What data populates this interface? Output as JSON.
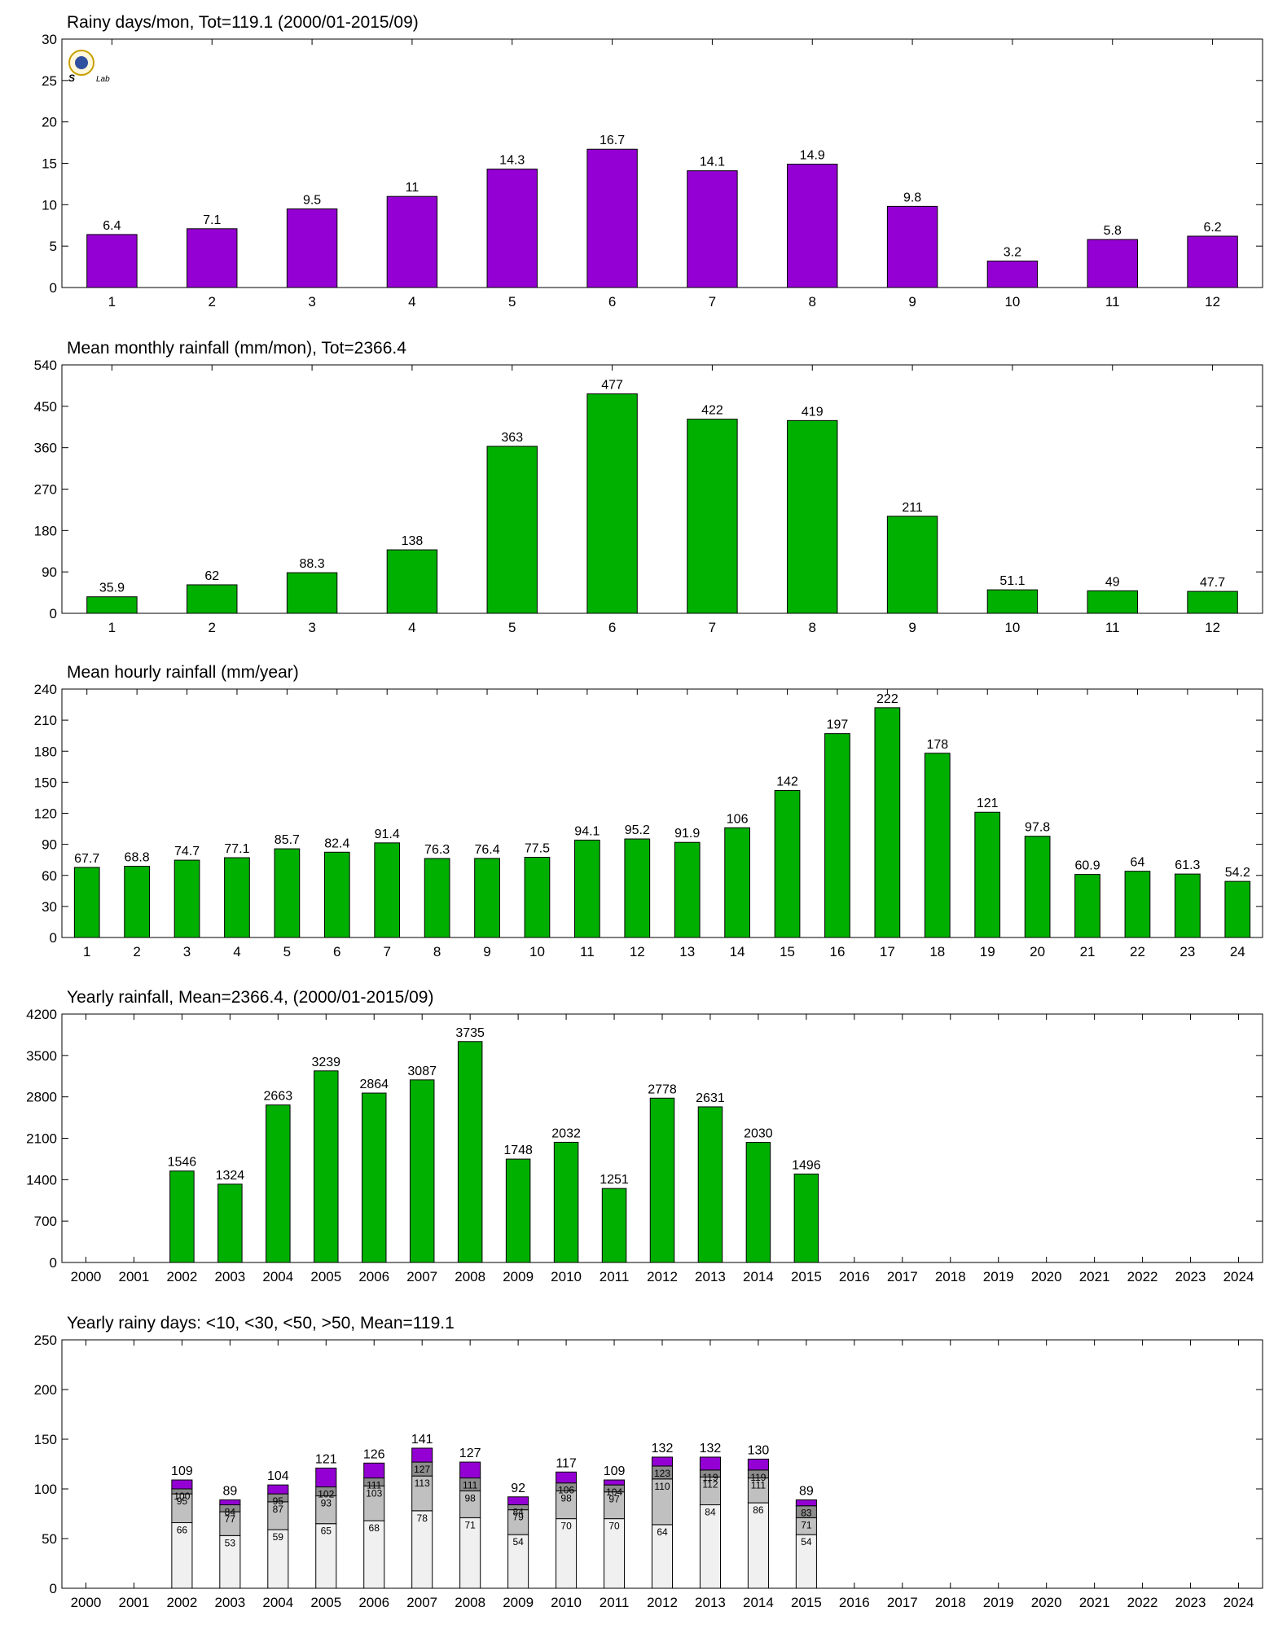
{
  "colors": {
    "purple": "#9400d3",
    "green": "#00b000",
    "light_gray": "#f0f0f0",
    "mid_gray": "#c0c0c0",
    "dark_gray": "#8c8c8c"
  },
  "logo": {
    "text": "Lab"
  },
  "chart_data": [
    {
      "type": "bar",
      "title": "Rainy days/mon, Tot=119.1 (2000/01-2015/09)",
      "categories": [
        "1",
        "2",
        "3",
        "4",
        "5",
        "6",
        "7",
        "8",
        "9",
        "10",
        "11",
        "12"
      ],
      "values": [
        6.4,
        7.1,
        9.5,
        11,
        14.3,
        16.7,
        14.1,
        14.9,
        9.8,
        3.2,
        5.8,
        6.2
      ],
      "labels": [
        "6.4",
        "7.1",
        "9.5",
        "11",
        "14.3",
        "16.7",
        "14.1",
        "14.9",
        "9.8",
        "3.2",
        "5.8",
        "6.2"
      ],
      "ylim": [
        0,
        30
      ],
      "yticks": [
        0,
        5,
        10,
        15,
        20,
        25,
        30
      ],
      "color": "#9400d3"
    },
    {
      "type": "bar",
      "title": "Mean monthly rainfall (mm/mon), Tot=2366.4",
      "categories": [
        "1",
        "2",
        "3",
        "4",
        "5",
        "6",
        "7",
        "8",
        "9",
        "10",
        "11",
        "12"
      ],
      "values": [
        35.9,
        62,
        88.3,
        138,
        363,
        477,
        422,
        419,
        211,
        51.1,
        49,
        47.7
      ],
      "labels": [
        "35.9",
        "62",
        "88.3",
        "138",
        "363",
        "477",
        "422",
        "419",
        "211",
        "51.1",
        "49",
        "47.7"
      ],
      "ylim": [
        0,
        540
      ],
      "yticks": [
        0,
        90,
        180,
        270,
        360,
        450,
        540
      ],
      "color": "#00b000"
    },
    {
      "type": "bar",
      "title": "Mean hourly rainfall (mm/year)",
      "categories": [
        "1",
        "2",
        "3",
        "4",
        "5",
        "6",
        "7",
        "8",
        "9",
        "10",
        "11",
        "12",
        "13",
        "14",
        "15",
        "16",
        "17",
        "18",
        "19",
        "20",
        "21",
        "22",
        "23",
        "24"
      ],
      "values": [
        67.7,
        68.8,
        74.7,
        77.1,
        85.7,
        82.4,
        91.4,
        76.3,
        76.4,
        77.5,
        94.1,
        95.2,
        91.9,
        106,
        142,
        197,
        222,
        178,
        121,
        97.8,
        60.9,
        64,
        61.3,
        54.2
      ],
      "labels": [
        "67.7",
        "68.8",
        "74.7",
        "77.1",
        "85.7",
        "82.4",
        "91.4",
        "76.3",
        "76.4",
        "77.5",
        "94.1",
        "95.2",
        "91.9",
        "106",
        "142",
        "197",
        "222",
        "178",
        "121",
        "97.8",
        "60.9",
        "64",
        "61.3",
        "54.2"
      ],
      "ylim": [
        0,
        240
      ],
      "yticks": [
        0,
        30,
        60,
        90,
        120,
        150,
        180,
        210,
        240
      ],
      "color": "#00b000"
    },
    {
      "type": "bar",
      "title": "Yearly rainfall, Mean=2366.4, (2000/01-2015/09)",
      "categories": [
        "2000",
        "2001",
        "2002",
        "2003",
        "2004",
        "2005",
        "2006",
        "2007",
        "2008",
        "2009",
        "2010",
        "2011",
        "2012",
        "2013",
        "2014",
        "2015",
        "2016",
        "2017",
        "2018",
        "2019",
        "2020",
        "2021",
        "2022",
        "2023",
        "2024"
      ],
      "values": [
        null,
        null,
        1546,
        1324,
        2663,
        3239,
        2864,
        3087,
        3735,
        1748,
        2032,
        1251,
        2778,
        2631,
        2030,
        1496,
        null,
        null,
        null,
        null,
        null,
        null,
        null,
        null,
        null
      ],
      "labels": [
        "",
        "",
        "1546",
        "1324",
        "2663",
        "3239",
        "2864",
        "3087",
        "3735",
        "1748",
        "2032",
        "1251",
        "2778",
        "2631",
        "2030",
        "1496",
        "",
        "",
        "",
        "",
        "",
        "",
        "",
        "",
        ""
      ],
      "ylim": [
        0,
        4200
      ],
      "yticks": [
        0,
        700,
        1400,
        2100,
        2800,
        3500,
        4200
      ],
      "color": "#00b000"
    },
    {
      "type": "bar",
      "stacked": true,
      "title": "Yearly rainy days: <10, <30, <50, >50, Mean=119.1",
      "categories": [
        "2000",
        "2001",
        "2002",
        "2003",
        "2004",
        "2005",
        "2006",
        "2007",
        "2008",
        "2009",
        "2010",
        "2011",
        "2012",
        "2013",
        "2014",
        "2015",
        "2016",
        "2017",
        "2018",
        "2019",
        "2020",
        "2021",
        "2022",
        "2023",
        "2024"
      ],
      "cumulative": {
        "lt10": [
          null,
          null,
          66,
          53,
          59,
          65,
          68,
          78,
          71,
          54,
          70,
          70,
          64,
          84,
          86,
          54,
          null,
          null,
          null,
          null,
          null,
          null,
          null,
          null,
          null
        ],
        "lt30": [
          null,
          null,
          95,
          77,
          87,
          93,
          103,
          113,
          98,
          79,
          98,
          97,
          110,
          112,
          111,
          71,
          null,
          null,
          null,
          null,
          null,
          null,
          null,
          null,
          null
        ],
        "lt50": [
          null,
          null,
          100,
          84,
          95,
          102,
          111,
          127,
          111,
          84,
          106,
          104,
          123,
          119,
          119,
          83,
          null,
          null,
          null,
          null,
          null,
          null,
          null,
          null,
          null
        ],
        "total": [
          null,
          null,
          109,
          89,
          104,
          121,
          126,
          141,
          127,
          92,
          117,
          109,
          132,
          132,
          130,
          89,
          null,
          null,
          null,
          null,
          null,
          null,
          null,
          null,
          null
        ]
      },
      "labels": {
        "lt10": [
          "",
          "",
          "66",
          "53",
          "59",
          "65",
          "68",
          "78",
          "71",
          "54",
          "70",
          "70",
          "64",
          "84",
          "86",
          "54",
          "",
          "",
          "",
          "",
          "",
          "",
          "",
          "",
          ""
        ],
        "lt30": [
          "",
          "",
          "95",
          "77",
          "87",
          "93",
          "103",
          "113",
          "98",
          "79",
          "98",
          "97",
          "110",
          "112",
          "111",
          "71",
          "",
          "",
          "",
          "",
          "",
          "",
          "",
          "",
          ""
        ],
        "lt50": [
          "",
          "",
          "100",
          "84",
          "95",
          "102",
          "111",
          "127",
          "111",
          "84",
          "106",
          "104",
          "123",
          "119",
          "119",
          "83",
          "",
          "",
          "",
          "",
          "",
          "",
          "",
          "",
          ""
        ],
        "total": [
          "",
          "",
          "109",
          "89",
          "104",
          "121",
          "126",
          "141",
          "127",
          "92",
          "117",
          "109",
          "132",
          "132",
          "130",
          "89",
          "",
          "",
          "",
          "",
          "",
          "",
          "",
          "",
          ""
        ]
      },
      "ylim": [
        0,
        250
      ],
      "yticks": [
        0,
        50,
        100,
        150,
        200,
        250
      ],
      "colors": [
        "#f0f0f0",
        "#c0c0c0",
        "#8c8c8c",
        "#9400d3"
      ]
    }
  ]
}
